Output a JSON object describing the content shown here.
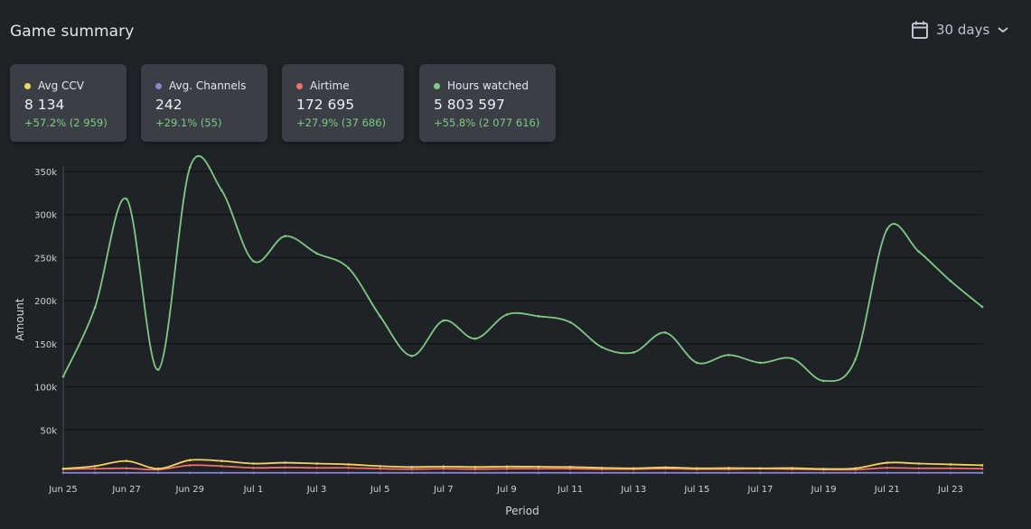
{
  "header": {
    "title": "Game summary",
    "range_label": "30 days",
    "calendar_icon": "calendar-icon",
    "dropdown_icon": "chevron-down-icon"
  },
  "cards": [
    {
      "label": "Avg CCV",
      "value": "8 134",
      "change": "+57.2% (2 959)",
      "color": "#f5d35a"
    },
    {
      "label": "Avg. Channels",
      "value": "242",
      "change": "+29.1% (55)",
      "color": "#8c84d6"
    },
    {
      "label": "Airtime",
      "value": "172 695",
      "change": "+27.9% (37 686)",
      "color": "#f0706a"
    },
    {
      "label": "Hours watched",
      "value": "5 803 597",
      "change": "+55.8% (2 077 616)",
      "color": "#7fca83"
    }
  ],
  "chart_data": {
    "type": "line",
    "xlabel": "Period",
    "ylabel": "Amount",
    "ylim": [
      0,
      350000
    ],
    "y_ticks": [
      "50k",
      "100k",
      "150k",
      "200k",
      "250k",
      "300k",
      "350k"
    ],
    "y_tick_values": [
      50000,
      100000,
      150000,
      200000,
      250000,
      300000,
      350000
    ],
    "x_tick_labels": [
      "Jun 25",
      "Jun 27",
      "Jun 29",
      "Jul 1",
      "Jul 3",
      "Jul 5",
      "Jul 7",
      "Jul 9",
      "Jul 11",
      "Jul 13",
      "Jul 15",
      "Jul 17",
      "Jul 19",
      "Jul 21",
      "Jul 23"
    ],
    "x_tick_indices": [
      0,
      2,
      4,
      6,
      8,
      10,
      12,
      14,
      16,
      18,
      20,
      22,
      24,
      26,
      28
    ],
    "grid": true,
    "series": [
      {
        "name": "Hours watched",
        "color": "#7fca83",
        "values": [
          112000,
          192000,
          318000,
          120000,
          355000,
          328000,
          246000,
          275000,
          255000,
          238000,
          182000,
          136000,
          177000,
          156000,
          184000,
          182000,
          175000,
          146000,
          140000,
          163000,
          128000,
          137000,
          128000,
          133000,
          107000,
          132000,
          283000,
          257000,
          223000,
          193000
        ]
      },
      {
        "name": "Avg CCV",
        "color": "#f5d35a",
        "values": [
          5000,
          8000,
          14000,
          5000,
          15000,
          14000,
          11000,
          12000,
          11000,
          10000,
          8000,
          7000,
          7500,
          7000,
          7500,
          7300,
          7000,
          6000,
          5500,
          6500,
          5500,
          5800,
          5500,
          5700,
          4800,
          5500,
          12000,
          11000,
          10000,
          9000
        ]
      },
      {
        "name": "Airtime",
        "color": "#f0706a",
        "values": [
          4500,
          5000,
          5500,
          4000,
          9000,
          8000,
          6000,
          6500,
          6000,
          6000,
          5000,
          4500,
          5000,
          4500,
          5000,
          5000,
          5000,
          4500,
          4500,
          5000,
          4500,
          4500,
          5000,
          4500,
          4000,
          4000,
          6000,
          5500,
          5500,
          5000
        ]
      },
      {
        "name": "Avg. Channels",
        "color": "#8c84d6",
        "values": [
          300,
          280,
          260,
          250,
          260,
          250,
          240,
          250,
          240,
          240,
          230,
          230,
          240,
          230,
          240,
          240,
          240,
          230,
          230,
          230,
          230,
          230,
          230,
          230,
          230,
          230,
          250,
          250,
          240,
          240
        ]
      }
    ]
  }
}
